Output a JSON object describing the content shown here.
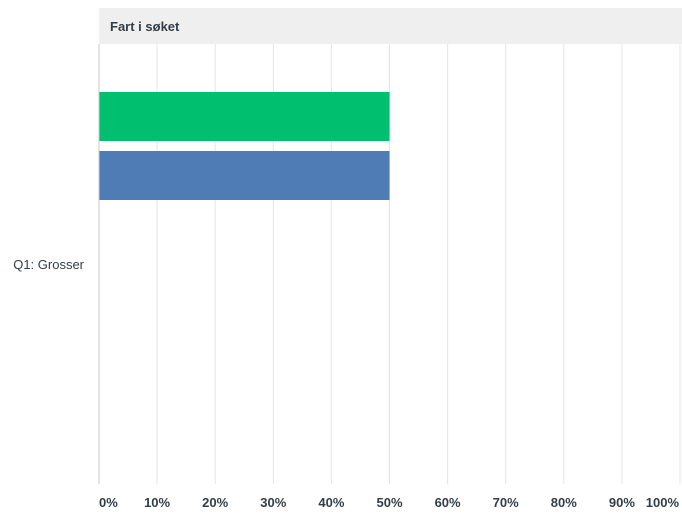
{
  "chart_data": {
    "type": "bar",
    "orientation": "horizontal",
    "title": "Fart i søket",
    "categories": [
      "Q1: Grosser"
    ],
    "series": [
      {
        "values": [
          50
        ],
        "color": "#00bf6f"
      },
      {
        "values": [
          50
        ],
        "color": "#507cb6"
      }
    ],
    "xlim": [
      0,
      100
    ],
    "x_tick_labels": [
      "0%",
      "10%",
      "20%",
      "30%",
      "40%",
      "50%",
      "60%",
      "70%",
      "80%",
      "90%",
      "100%"
    ],
    "grid": true,
    "legend": "none"
  },
  "colors": {
    "header_band": "#efefef",
    "grid": "#e5e5e5",
    "axis": "#c7c7c7",
    "text": "#333e48"
  }
}
